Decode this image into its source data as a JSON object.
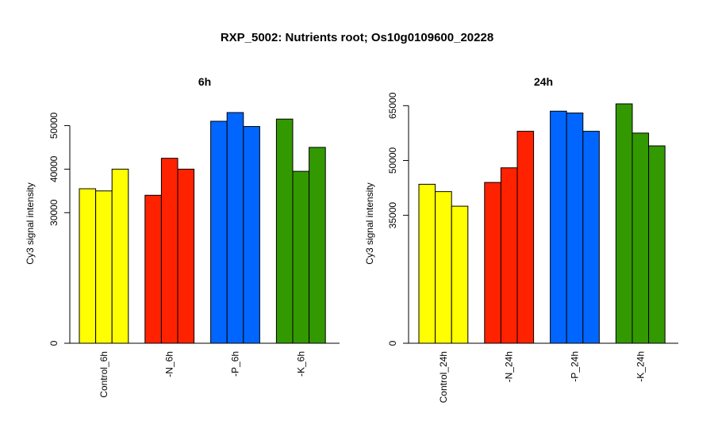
{
  "title": "RXP_5002: Nutrients root; Os10g0109600_20228",
  "chart_data": [
    {
      "type": "bar",
      "title": "6h",
      "ylabel": "Cy3 signal intensity",
      "categories": [
        "Control_6h",
        "-N_6h",
        "-P_6h",
        "-K_6h"
      ],
      "colors": [
        "#ffff00",
        "#ff2200",
        "#0066ff",
        "#339900"
      ],
      "values": [
        [
          35500,
          35000,
          40000
        ],
        [
          34000,
          42500,
          40000
        ],
        [
          51000,
          53000,
          49800
        ],
        [
          51500,
          39500,
          45000
        ]
      ],
      "ylim": [
        0,
        55000
      ],
      "yticks": [
        0,
        30000,
        40000,
        50000
      ]
    },
    {
      "type": "bar",
      "title": "24h",
      "ylabel": "Cy3 signal intensity",
      "categories": [
        "Control_24h",
        "-N_24h",
        "-P_24h",
        "-K_24h"
      ],
      "colors": [
        "#ffff00",
        "#ff2200",
        "#0066ff",
        "#339900"
      ],
      "values": [
        [
          43500,
          41500,
          37500
        ],
        [
          44000,
          48000,
          58000
        ],
        [
          63500,
          63000,
          58000
        ],
        [
          65500,
          57500,
          54000
        ]
      ],
      "ylim": [
        0,
        65500
      ],
      "yticks": [
        0,
        35000,
        50000,
        65000
      ]
    }
  ]
}
